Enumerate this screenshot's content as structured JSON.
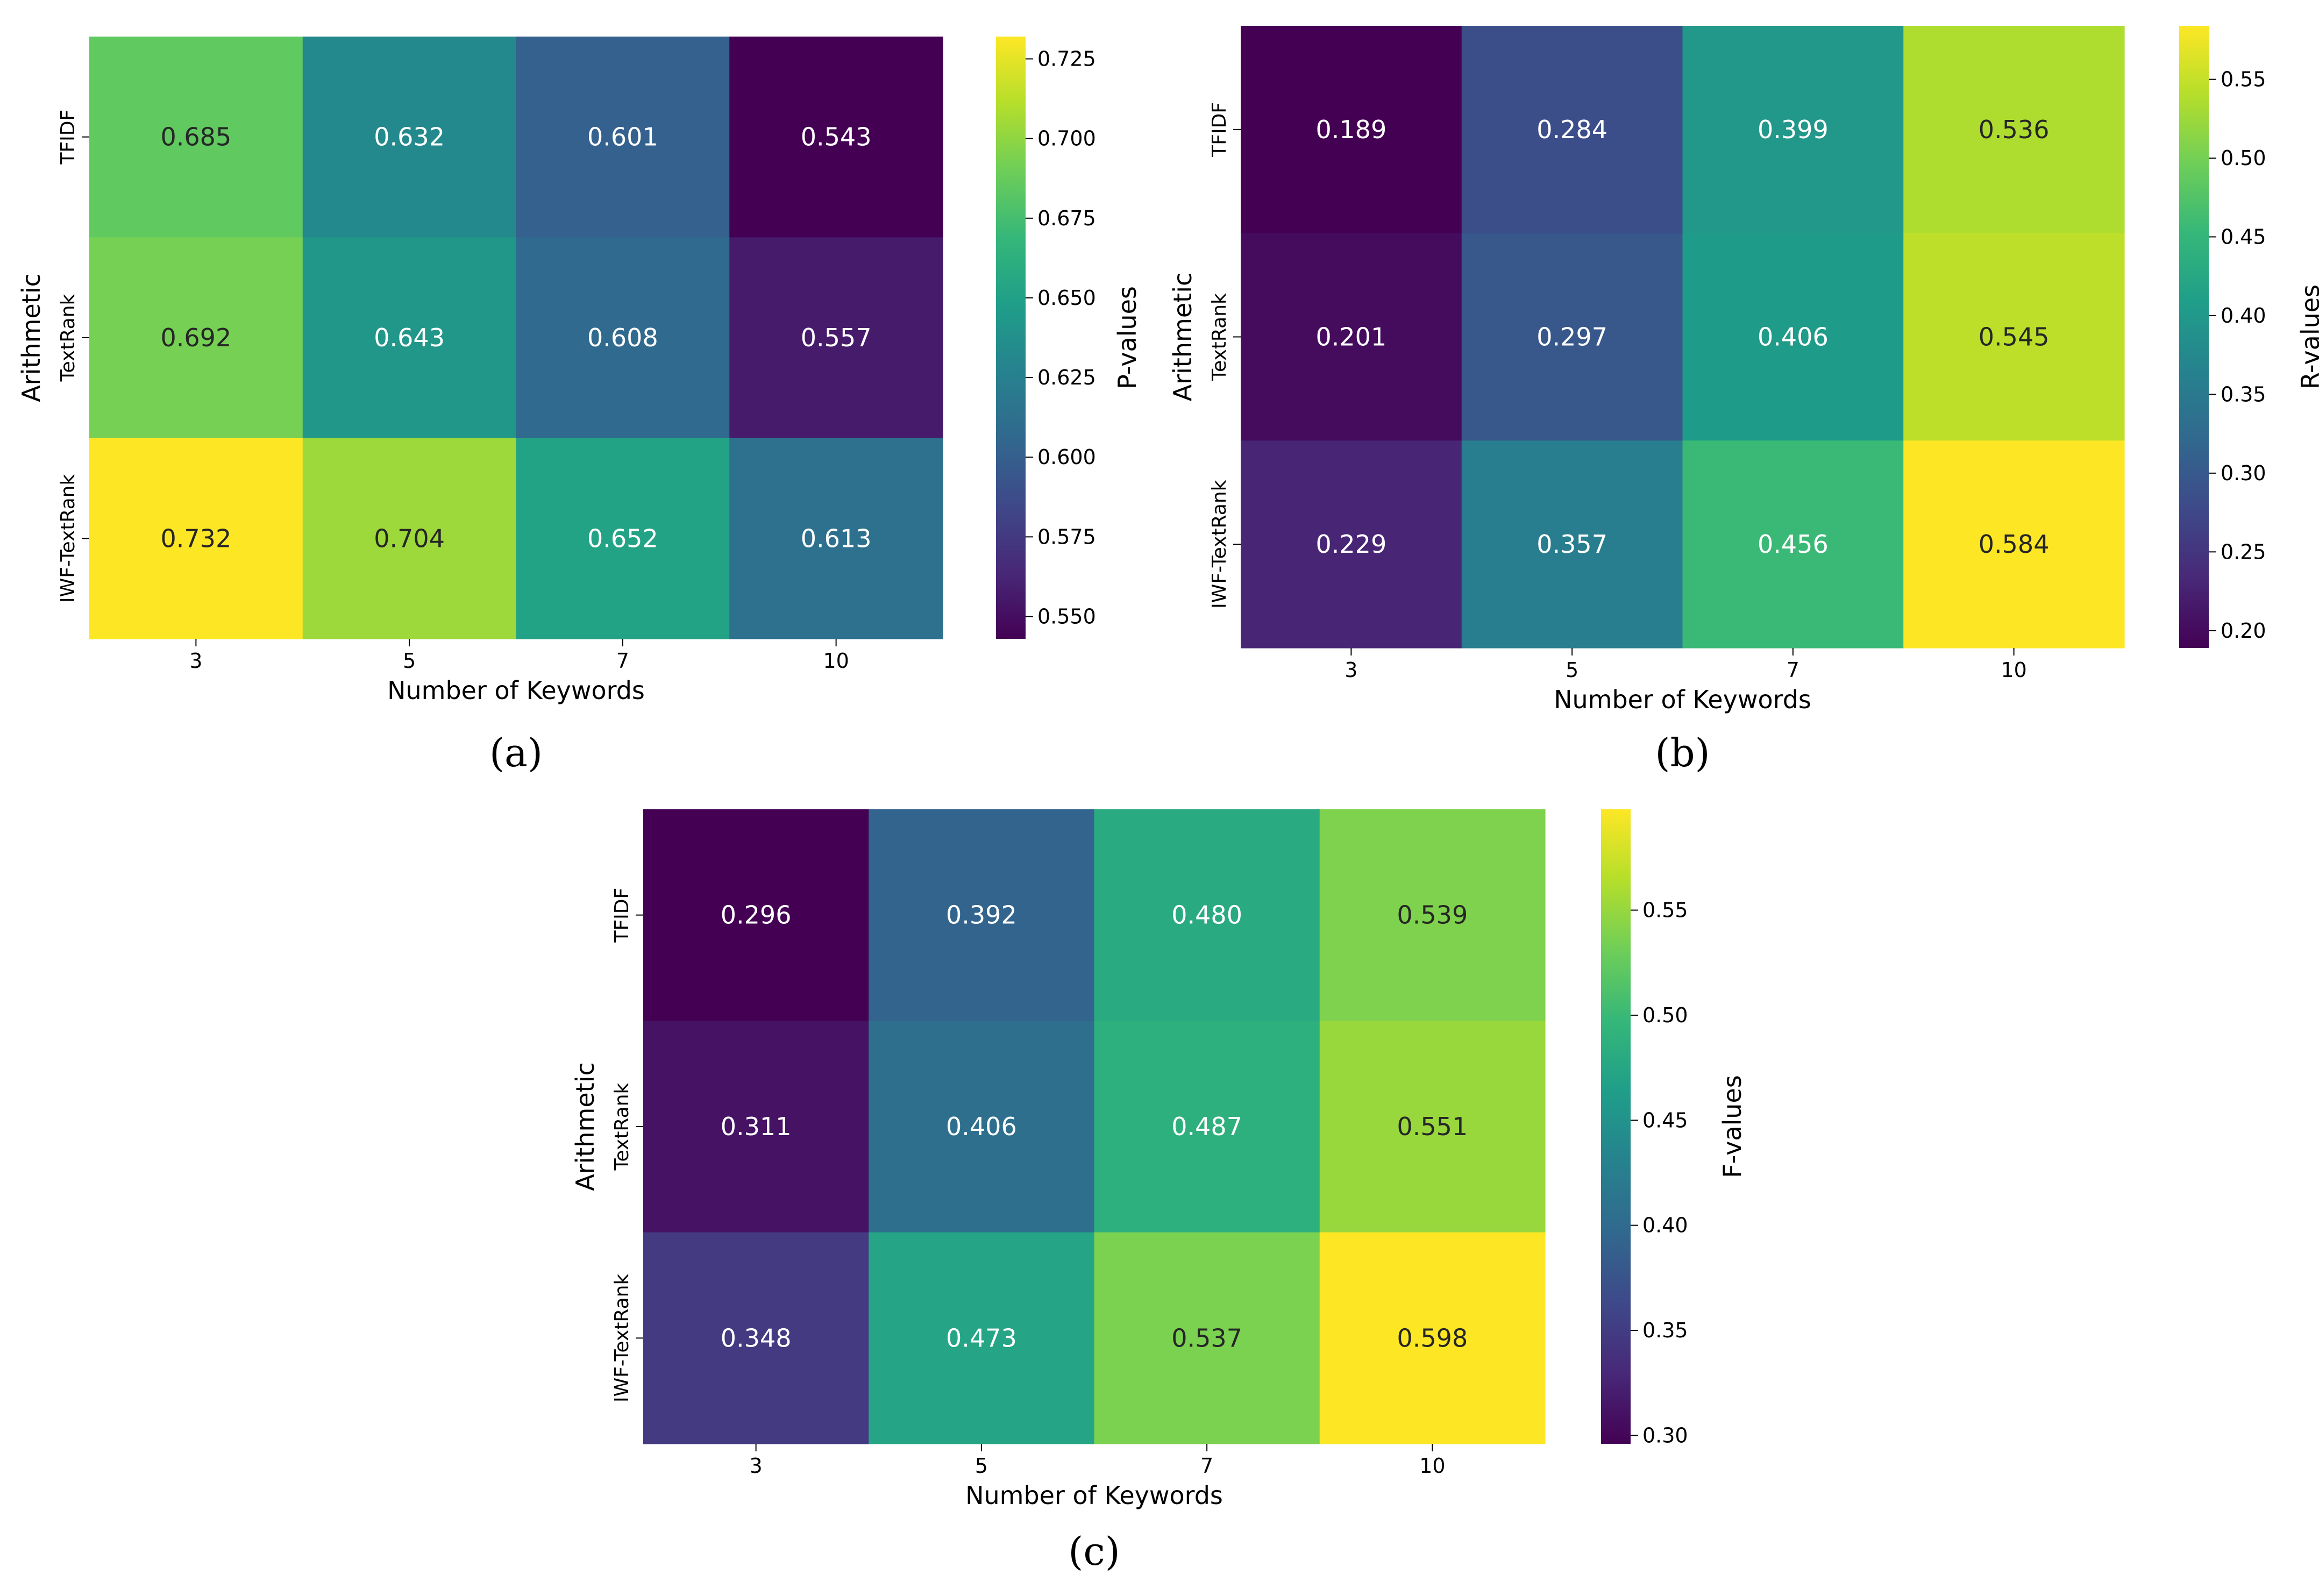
{
  "chart_data": [
    {
      "type": "heatmap",
      "caption": "(a)",
      "title": "",
      "xlabel": "Number of Keywords",
      "ylabel": "Arithmetic",
      "x": [
        "3",
        "5",
        "7",
        "10"
      ],
      "y": [
        "TFIDF",
        "TextRank",
        "IWF-TextRank"
      ],
      "values": [
        [
          0.685,
          0.632,
          0.601,
          0.543
        ],
        [
          0.692,
          0.643,
          0.608,
          0.557
        ],
        [
          0.732,
          0.704,
          0.652,
          0.613
        ]
      ],
      "value_labels": [
        [
          "0.685",
          "0.632",
          "0.601",
          "0.543"
        ],
        [
          "0.692",
          "0.643",
          "0.608",
          "0.557"
        ],
        [
          "0.732",
          "0.704",
          "0.652",
          "0.613"
        ]
      ],
      "colorbar_label": "P-values",
      "colormap": "viridis",
      "vmin": 0.543,
      "vmax": 0.732,
      "colorbar_ticks": [
        "0.550",
        "0.575",
        "0.600",
        "0.625",
        "0.650",
        "0.675",
        "0.700",
        "0.725"
      ]
    },
    {
      "type": "heatmap",
      "caption": "(b)",
      "title": "",
      "xlabel": "Number of Keywords",
      "ylabel": "Arithmetic",
      "x": [
        "3",
        "5",
        "7",
        "10"
      ],
      "y": [
        "TFIDF",
        "TextRank",
        "IWF-TextRank"
      ],
      "values": [
        [
          0.189,
          0.284,
          0.399,
          0.536
        ],
        [
          0.201,
          0.297,
          0.406,
          0.545
        ],
        [
          0.229,
          0.357,
          0.456,
          0.584
        ]
      ],
      "value_labels": [
        [
          "0.189",
          "0.284",
          "0.399",
          "0.536"
        ],
        [
          "0.201",
          "0.297",
          "0.406",
          "0.545"
        ],
        [
          "0.229",
          "0.357",
          "0.456",
          "0.584"
        ]
      ],
      "colorbar_label": "R-values",
      "colormap": "viridis",
      "vmin": 0.189,
      "vmax": 0.584,
      "colorbar_ticks": [
        "0.20",
        "0.25",
        "0.30",
        "0.35",
        "0.40",
        "0.45",
        "0.50",
        "0.55"
      ]
    },
    {
      "type": "heatmap",
      "caption": "(c)",
      "title": "",
      "xlabel": "Number of Keywords",
      "ylabel": "Arithmetic",
      "x": [
        "3",
        "5",
        "7",
        "10"
      ],
      "y": [
        "TFIDF",
        "TextRank",
        "IWF-TextRank"
      ],
      "values": [
        [
          0.296,
          0.392,
          0.48,
          0.539
        ],
        [
          0.311,
          0.406,
          0.487,
          0.551
        ],
        [
          0.348,
          0.473,
          0.537,
          0.598
        ]
      ],
      "value_labels": [
        [
          "0.296",
          "0.392",
          "0.480",
          "0.539"
        ],
        [
          "0.311",
          "0.406",
          "0.487",
          "0.551"
        ],
        [
          "0.348",
          "0.473",
          "0.537",
          "0.598"
        ]
      ],
      "colorbar_label": "F-values",
      "colormap": "viridis",
      "vmin": 0.296,
      "vmax": 0.598,
      "colorbar_ticks": [
        "0.30",
        "0.35",
        "0.40",
        "0.45",
        "0.50",
        "0.55"
      ]
    }
  ]
}
